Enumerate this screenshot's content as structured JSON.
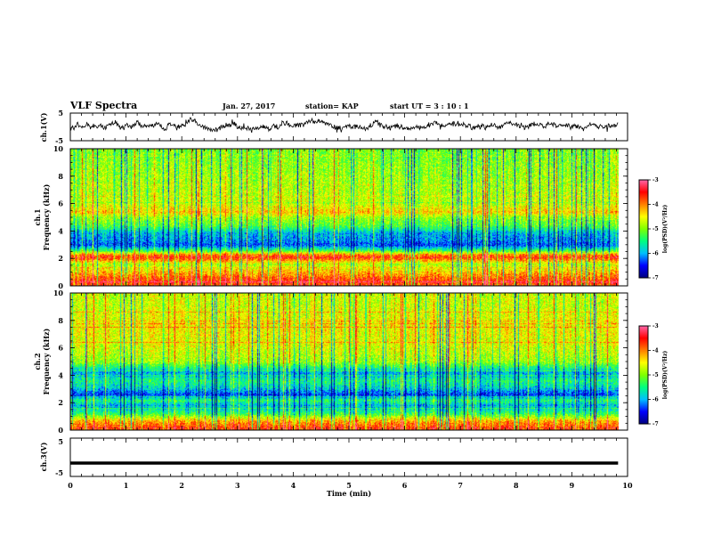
{
  "header": {
    "title": "VLF Spectra",
    "date": "Jan. 27, 2017",
    "station": "station= KAP",
    "start": "start  UT =  3 : 10 : 1"
  },
  "colorbar": {
    "label": "log(PSD)(V²/Hz)",
    "ticks": [
      "-3",
      "-4",
      "-5",
      "-6",
      "-7"
    ],
    "range": [
      -7,
      -3
    ],
    "colors": [
      "#00007f",
      "#0000ff",
      "#00bfff",
      "#00ff7f",
      "#7fff00",
      "#ffff00",
      "#ff7f00",
      "#ff0000",
      "#ff66aa"
    ]
  },
  "chart_data": [
    {
      "type": "line",
      "panel": "ch1-waveform",
      "ylabel": "ch.1(V)",
      "ylim": [
        -5,
        5
      ],
      "yticks": [
        "5",
        "-5"
      ],
      "xlim": [
        0,
        10
      ],
      "series": [
        {
          "values_description_only": false,
          "x_range": [
            0,
            9.83
          ],
          "mean": 0.3,
          "amplitude_approx": 1.5
        }
      ]
    },
    {
      "type": "heatmap",
      "panel": "ch1-spectrogram",
      "ylabel": "ch.1",
      "ylabel2": "Frequency (kHz)",
      "ylim": [
        0,
        10
      ],
      "yticks": [
        "0",
        "2",
        "4",
        "6",
        "8",
        "10"
      ],
      "xlim": [
        0,
        10
      ],
      "x_extent": 9.83,
      "z_range": [
        -7,
        -3
      ],
      "bands_khz": [
        {
          "f": 0.3,
          "level": -3.6
        },
        {
          "f": 0.6,
          "level": -3.8
        },
        {
          "f": 1.0,
          "level": -4.2
        },
        {
          "f": 1.6,
          "level": -4.8
        },
        {
          "f": 2.1,
          "level": -3.6
        },
        {
          "f": 2.3,
          "level": -4.0
        },
        {
          "f": 2.6,
          "level": -5.3
        },
        {
          "f": 3.0,
          "level": -6.3
        },
        {
          "f": 3.3,
          "level": -6.1
        },
        {
          "f": 3.9,
          "level": -5.9
        },
        {
          "f": 4.4,
          "level": -5.2
        },
        {
          "f": 5.0,
          "level": -4.9
        },
        {
          "f": 5.4,
          "level": -4.3
        },
        {
          "f": 6.0,
          "level": -4.7
        },
        {
          "f": 7.2,
          "level": -4.8
        },
        {
          "f": 8.5,
          "level": -4.9
        },
        {
          "f": 9.5,
          "level": -5.0
        }
      ]
    },
    {
      "type": "heatmap",
      "panel": "ch2-spectrogram",
      "ylabel": "ch.2",
      "ylabel2": "Frequency (kHz)",
      "ylim": [
        0,
        10
      ],
      "yticks": [
        "0",
        "2",
        "4",
        "6",
        "8",
        "10"
      ],
      "xlim": [
        0,
        10
      ],
      "x_extent": 9.83,
      "z_range": [
        -7,
        -3
      ],
      "bands_khz": [
        {
          "f": 0.3,
          "level": -3.8
        },
        {
          "f": 0.7,
          "level": -4.2
        },
        {
          "f": 1.2,
          "level": -5.3
        },
        {
          "f": 1.8,
          "level": -6.0
        },
        {
          "f": 2.2,
          "level": -5.4
        },
        {
          "f": 2.6,
          "level": -6.4
        },
        {
          "f": 3.1,
          "level": -5.8
        },
        {
          "f": 3.6,
          "level": -5.5
        },
        {
          "f": 4.2,
          "level": -6.0
        },
        {
          "f": 5.0,
          "level": -4.9
        },
        {
          "f": 6.3,
          "level": -4.6
        },
        {
          "f": 7.8,
          "level": -4.5
        },
        {
          "f": 9.0,
          "level": -4.7
        }
      ]
    },
    {
      "type": "line",
      "panel": "ch3-waveform",
      "ylabel": "ch.3(V)",
      "ylim": [
        -5,
        5
      ],
      "yticks": [
        "5",
        "-5"
      ],
      "xlim": [
        0,
        10
      ],
      "series": [
        {
          "x_range": [
            0,
            9.83
          ],
          "value": -1.5
        }
      ]
    }
  ],
  "xaxis": {
    "label": "Time  (min)",
    "ticks": [
      "0",
      "1",
      "2",
      "3",
      "4",
      "5",
      "6",
      "7",
      "8",
      "9",
      "10"
    ]
  }
}
